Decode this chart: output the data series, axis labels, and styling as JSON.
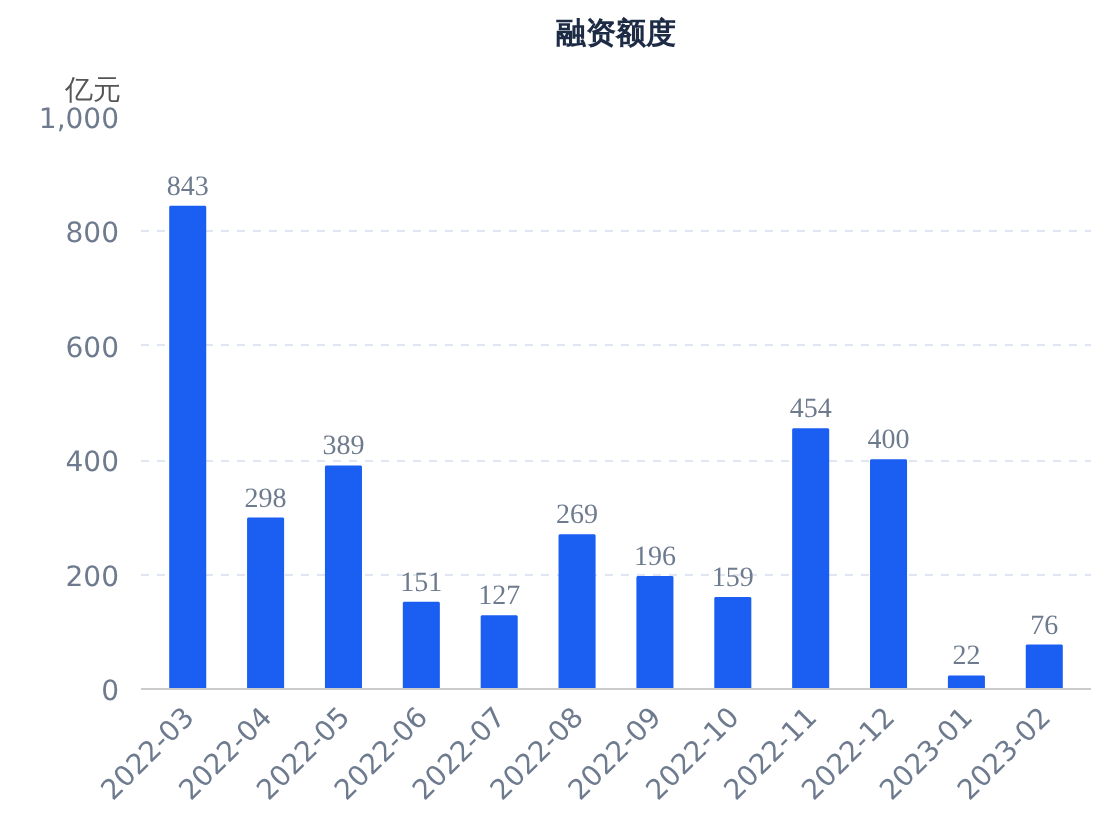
{
  "chart_data": {
    "type": "bar",
    "title": "融资额度",
    "ylabel": "亿元",
    "categories": [
      "2022-03",
      "2022-04",
      "2022-05",
      "2022-06",
      "2022-07",
      "2022-08",
      "2022-09",
      "2022-10",
      "2022-11",
      "2022-12",
      "2023-01",
      "2023-02"
    ],
    "values": [
      843,
      298,
      389,
      151,
      127,
      269,
      196,
      159,
      454,
      400,
      22,
      76
    ],
    "color": "#1b5ef2",
    "ylim": [
      0,
      1000
    ],
    "yticks": [
      0,
      {
        "value": 200,
        "label": "200"
      },
      {
        "value": 400,
        "label": "400"
      },
      {
        "value": 600,
        "label": "600"
      },
      {
        "value": 800,
        "label": "800"
      },
      {
        "value": 1000,
        "label": "1,000"
      }
    ],
    "grid": "y",
    "data_labels": true
  }
}
